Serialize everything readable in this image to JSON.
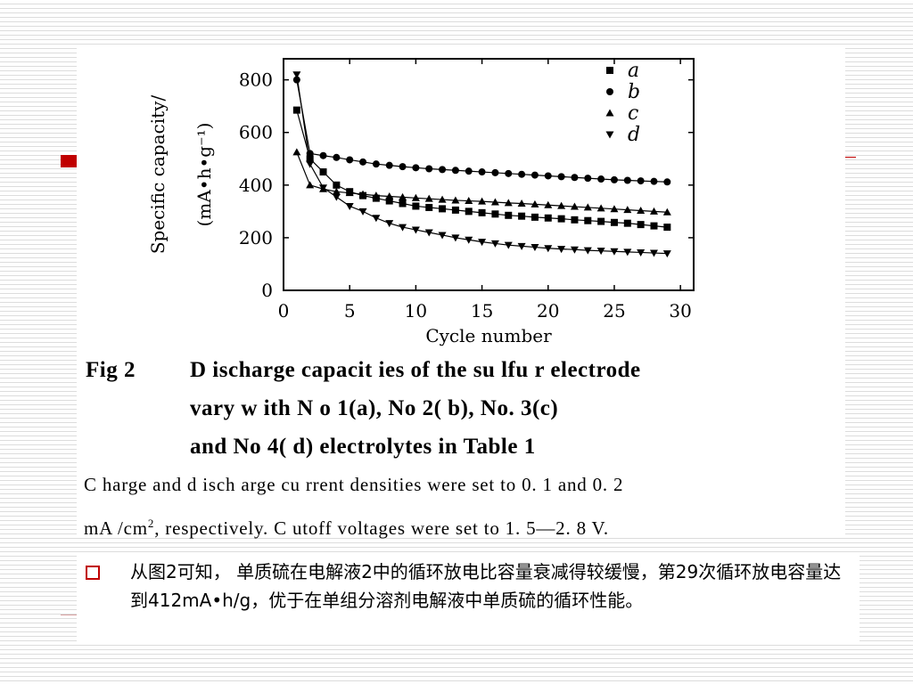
{
  "chart_data": {
    "type": "scatter",
    "ylabel_line1": "Specific capacity/",
    "ylabel_line2": "(mA•h•g⁻¹)",
    "xlabel": "Cycle number",
    "xlim": [
      0,
      31
    ],
    "ylim": [
      0,
      880
    ],
    "xticks": [
      0,
      5,
      10,
      15,
      20,
      25,
      30
    ],
    "yticks": [
      0,
      200,
      400,
      600,
      800
    ],
    "grid": false,
    "legend_position": "top-right",
    "series": [
      {
        "name": "a",
        "marker": "square",
        "x": [
          1,
          2,
          3,
          4,
          5,
          6,
          7,
          8,
          9,
          10,
          11,
          12,
          13,
          14,
          15,
          16,
          17,
          18,
          19,
          20,
          21,
          22,
          23,
          24,
          25,
          26,
          27,
          28,
          29
        ],
        "y": [
          685,
          500,
          450,
          400,
          375,
          360,
          350,
          340,
          330,
          320,
          315,
          310,
          305,
          300,
          295,
          290,
          285,
          282,
          278,
          275,
          272,
          268,
          265,
          262,
          258,
          255,
          250,
          245,
          240
        ]
      },
      {
        "name": "b",
        "marker": "circle",
        "x": [
          1,
          2,
          3,
          4,
          5,
          6,
          7,
          8,
          9,
          10,
          11,
          12,
          13,
          14,
          15,
          16,
          17,
          18,
          19,
          20,
          21,
          22,
          23,
          24,
          25,
          26,
          27,
          28,
          29
        ],
        "y": [
          800,
          520,
          512,
          505,
          496,
          488,
          480,
          475,
          470,
          466,
          462,
          459,
          456,
          453,
          450,
          447,
          444,
          441,
          438,
          435,
          432,
          429,
          426,
          423,
          420,
          418,
          416,
          414,
          412
        ]
      },
      {
        "name": "c",
        "marker": "triangle-up",
        "x": [
          1,
          2,
          3,
          4,
          5,
          6,
          7,
          8,
          9,
          10,
          11,
          12,
          13,
          14,
          15,
          16,
          17,
          18,
          19,
          20,
          21,
          22,
          23,
          24,
          25,
          26,
          27,
          28,
          29
        ],
        "y": [
          525,
          400,
          385,
          375,
          370,
          365,
          360,
          357,
          354,
          351,
          348,
          345,
          342,
          340,
          338,
          335,
          332,
          330,
          327,
          324,
          321,
          318,
          315,
          312,
          309,
          306,
          303,
          300,
          297
        ]
      },
      {
        "name": "d",
        "marker": "triangle-down",
        "x": [
          1,
          2,
          3,
          4,
          5,
          6,
          7,
          8,
          9,
          10,
          11,
          12,
          13,
          14,
          15,
          16,
          17,
          18,
          19,
          20,
          21,
          22,
          23,
          24,
          25,
          26,
          27,
          28,
          29
        ],
        "y": [
          820,
          480,
          390,
          355,
          320,
          300,
          275,
          255,
          240,
          230,
          220,
          210,
          200,
          192,
          184,
          178,
          172,
          168,
          164,
          160,
          157,
          155,
          152,
          150,
          148,
          146,
          144,
          142,
          140
        ]
      }
    ]
  },
  "caption": {
    "label": "Fig 2",
    "line1": "D ischarge capacit ies of the su lfu r electrode",
    "line2": "vary w ith N o 1(a),   No 2( b),   No. 3(c)",
    "line3": "and No 4( d)  electrolytes in Table 1"
  },
  "note": {
    "line1": "C harge  and  d isch arge  cu rrent  densities were  set  to  0. 1  and  0. 2",
    "line2_prefix": "mA /cm",
    "line2_sup": "2",
    "line2_suffix": ",   respectively.  C utoff voltages were  set  to 1. 5—2. 8 V."
  },
  "bullet": {
    "text": "从图2可知， 单质硫在电解液2中的循环放电比容量衰减得较缓慢，第29次循环放电容量达到412mA•h/g，优于在单组分溶剂电解液中单质硫的循环性能。"
  }
}
